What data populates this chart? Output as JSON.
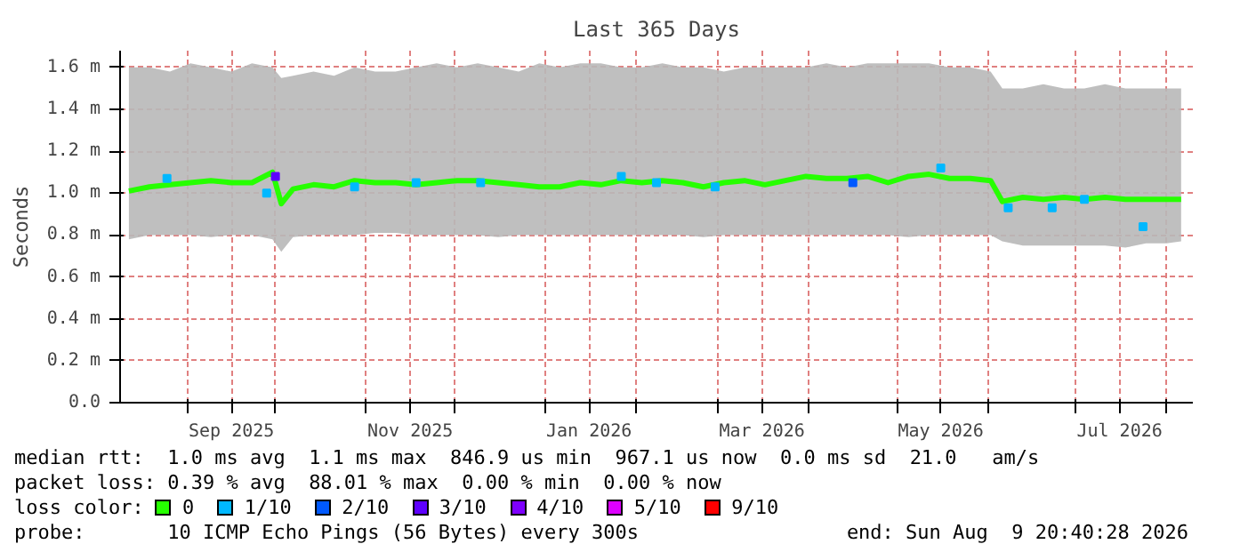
{
  "chart_data": {
    "type": "line",
    "title": "Last 365 Days",
    "ylabel": "Seconds",
    "legend_title": "loss color:",
    "legend": "bottom",
    "grid": true,
    "line_style": "solid",
    "xlim": [
      "2025-08-09",
      "2026-08-10"
    ],
    "xticks": [
      {
        "value": "2025-09-01",
        "label": null
      },
      {
        "value": "2025-09-16",
        "label": "Sep 2025"
      },
      {
        "value": "2025-10-01",
        "label": null
      },
      {
        "value": "2025-11-01",
        "label": null
      },
      {
        "value": "2025-11-16",
        "label": "Nov 2025"
      },
      {
        "value": "2025-12-01",
        "label": null
      },
      {
        "value": "2026-01-01",
        "label": null
      },
      {
        "value": "2026-01-16",
        "label": "Jan 2026"
      },
      {
        "value": "2026-02-01",
        "label": null
      },
      {
        "value": "2026-03-01",
        "label": null
      },
      {
        "value": "2026-03-16",
        "label": "Mar 2026"
      },
      {
        "value": "2026-04-01",
        "label": null
      },
      {
        "value": "2026-05-01",
        "label": null
      },
      {
        "value": "2026-05-16",
        "label": "May 2026"
      },
      {
        "value": "2026-06-01",
        "label": null
      },
      {
        "value": "2026-07-01",
        "label": null
      },
      {
        "value": "2026-07-16",
        "label": "Jul 2026"
      },
      {
        "value": "2026-08-01",
        "label": null
      }
    ],
    "ylim": [
      0,
      1.68
    ],
    "yticks": [
      {
        "value": 0,
        "label": "0.0"
      },
      {
        "value": 0.2,
        "label": "0.2 m"
      },
      {
        "value": 0.4,
        "label": "0.4 m"
      },
      {
        "value": 0.6,
        "label": "0.6 m"
      },
      {
        "value": 0.8,
        "label": "0.8 m"
      },
      {
        "value": 1.0,
        "label": "1.0 m"
      },
      {
        "value": 1.2,
        "label": "1.2 m"
      },
      {
        "value": 1.4,
        "label": "1.4 m"
      },
      {
        "value": 1.6,
        "label": "1.6 m"
      }
    ],
    "annotations": [
      "median rtt:  1.0 ms avg  1.1 ms max  846.9 us min  967.1 us now  0.0 ms sd  21.0   am/s",
      "packet loss: 0.39 % avg  88.01 % max  0.00 % min  0.00 % now",
      "probe:       10 ICMP Echo Pings (56 Bytes) every 300s",
      "end: Sun Aug  9 20:40:28 2026"
    ],
    "series": [
      {
        "name": "0",
        "color": "#26ff00",
        "x": [
          "2025-08-12",
          "2025-08-19",
          "2025-08-26",
          "2025-09-02",
          "2025-09-09",
          "2025-09-16",
          "2025-09-23",
          "2025-09-30",
          "2025-10-03",
          "2025-10-07",
          "2025-10-14",
          "2025-10-21",
          "2025-10-28",
          "2025-11-04",
          "2025-11-11",
          "2025-11-18",
          "2025-11-25",
          "2025-12-02",
          "2025-12-09",
          "2025-12-16",
          "2025-12-23",
          "2025-12-30",
          "2026-01-06",
          "2026-01-13",
          "2026-01-20",
          "2026-01-27",
          "2026-02-03",
          "2026-02-10",
          "2026-02-17",
          "2026-02-24",
          "2026-03-03",
          "2026-03-10",
          "2026-03-17",
          "2026-03-24",
          "2026-03-31",
          "2026-04-07",
          "2026-04-14",
          "2026-04-21",
          "2026-04-28",
          "2026-05-05",
          "2026-05-12",
          "2026-05-19",
          "2026-05-26",
          "2026-06-02",
          "2026-06-06",
          "2026-06-13",
          "2026-06-20",
          "2026-06-27",
          "2026-07-04",
          "2026-07-11",
          "2026-07-18",
          "2026-07-25",
          "2026-08-01",
          "2026-08-06"
        ],
        "values": [
          1.01,
          1.03,
          1.04,
          1.05,
          1.06,
          1.05,
          1.05,
          1.1,
          0.95,
          1.02,
          1.04,
          1.03,
          1.06,
          1.05,
          1.05,
          1.04,
          1.05,
          1.06,
          1.06,
          1.05,
          1.04,
          1.03,
          1.03,
          1.05,
          1.04,
          1.06,
          1.05,
          1.06,
          1.05,
          1.03,
          1.05,
          1.06,
          1.04,
          1.06,
          1.08,
          1.07,
          1.07,
          1.08,
          1.05,
          1.08,
          1.09,
          1.07,
          1.07,
          1.06,
          0.96,
          0.98,
          0.97,
          0.98,
          0.97,
          0.98,
          0.97,
          0.97,
          0.97,
          0.97
        ],
        "lower": [
          0.78,
          0.8,
          0.8,
          0.8,
          0.79,
          0.8,
          0.8,
          0.78,
          0.72,
          0.79,
          0.8,
          0.8,
          0.8,
          0.81,
          0.81,
          0.8,
          0.8,
          0.8,
          0.8,
          0.79,
          0.8,
          0.8,
          0.8,
          0.8,
          0.8,
          0.8,
          0.8,
          0.8,
          0.8,
          0.79,
          0.8,
          0.8,
          0.8,
          0.8,
          0.8,
          0.8,
          0.8,
          0.8,
          0.8,
          0.79,
          0.8,
          0.8,
          0.8,
          0.8,
          0.77,
          0.75,
          0.75,
          0.75,
          0.75,
          0.75,
          0.74,
          0.76,
          0.76,
          0.77
        ],
        "upper": [
          1.6,
          1.6,
          1.58,
          1.62,
          1.6,
          1.58,
          1.62,
          1.6,
          1.55,
          1.56,
          1.58,
          1.56,
          1.6,
          1.58,
          1.58,
          1.6,
          1.62,
          1.6,
          1.62,
          1.6,
          1.58,
          1.62,
          1.6,
          1.62,
          1.62,
          1.6,
          1.6,
          1.62,
          1.6,
          1.6,
          1.58,
          1.6,
          1.6,
          1.6,
          1.6,
          1.62,
          1.6,
          1.62,
          1.62,
          1.62,
          1.62,
          1.6,
          1.6,
          1.58,
          1.5,
          1.5,
          1.52,
          1.5,
          1.5,
          1.52,
          1.5,
          1.5,
          1.5,
          1.5
        ]
      },
      {
        "name": "1/10",
        "color": "#00b8ff",
        "type": "scatter",
        "marker": "square",
        "x": [
          "2025-08-25",
          "2025-09-28",
          "2025-10-28",
          "2025-11-18",
          "2025-12-10",
          "2026-01-27",
          "2026-02-08",
          "2026-02-28",
          "2026-05-16",
          "2026-06-08",
          "2026-06-23",
          "2026-07-04",
          "2026-07-24"
        ],
        "values": [
          1.07,
          1.0,
          1.03,
          1.05,
          1.05,
          1.08,
          1.05,
          1.03,
          1.12,
          0.93,
          0.93,
          0.97,
          0.84
        ]
      },
      {
        "name": "2/10",
        "color": "#0059ff",
        "type": "scatter",
        "marker": "square",
        "x": [
          "2026-04-16"
        ],
        "values": [
          1.05
        ]
      },
      {
        "name": "3/10",
        "color": "#5e00ff",
        "type": "scatter",
        "marker": "square",
        "x": [
          "2025-10-01"
        ],
        "values": [
          1.08
        ]
      },
      {
        "name": "4/10",
        "color": "#7e00ff",
        "type": "scatter"
      },
      {
        "name": "5/10",
        "color": "#dd00ff",
        "type": "scatter"
      },
      {
        "name": "9/10",
        "color": "#ff0000",
        "type": "scatter"
      }
    ]
  }
}
